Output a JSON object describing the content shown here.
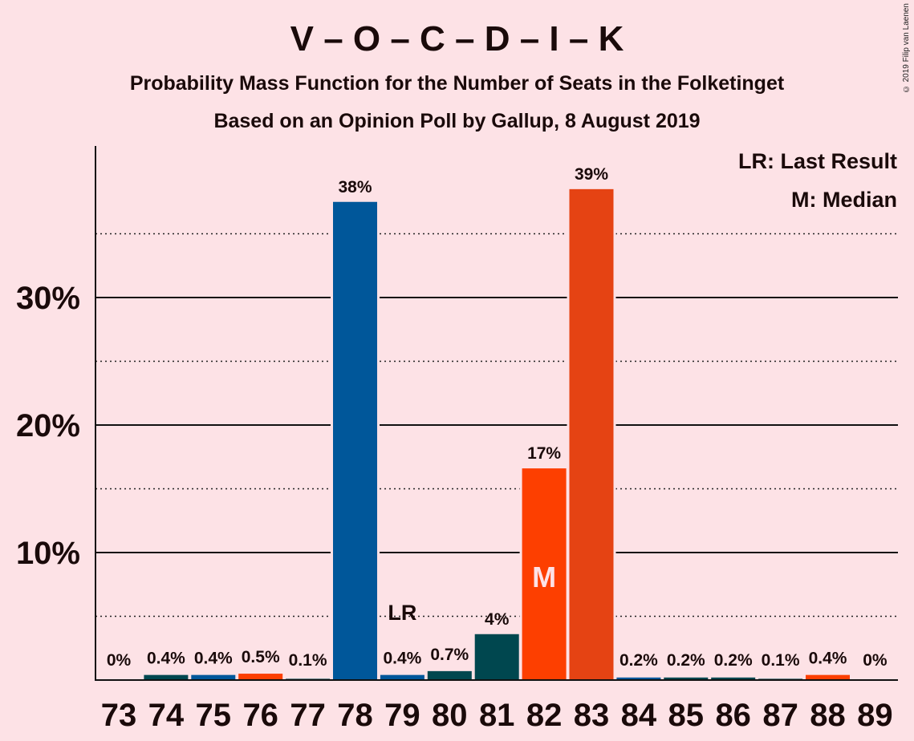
{
  "title": "V – O – C – D – I – K",
  "subtitle1": "Probability Mass Function for the Number of Seats in the Folketinget",
  "subtitle2": "Based on an Opinion Poll by Gallup, 8 August 2019",
  "copyright": "© 2019 Filip van Laenen",
  "legend": {
    "lr": "LR: Last Result",
    "median": "M: Median"
  },
  "markers": {
    "lr_label": "LR",
    "median_label": "M",
    "lr_seat": 79,
    "median_seat": 82
  },
  "colors": {
    "background": "#fde2e6",
    "blue": "#00579a",
    "dark_teal": "#00474f",
    "orange_red": "#fd3f00",
    "orange": "#e54313"
  },
  "chart_data": {
    "type": "bar",
    "categories": [
      "73",
      "74",
      "75",
      "76",
      "77",
      "78",
      "79",
      "80",
      "81",
      "82",
      "83",
      "84",
      "85",
      "86",
      "87",
      "88",
      "89"
    ],
    "values": [
      0,
      0.4,
      0.4,
      0.5,
      0.1,
      37.5,
      0.4,
      0.7,
      3.6,
      16.6,
      38.5,
      0.2,
      0.2,
      0.2,
      0.1,
      0.4,
      0
    ],
    "labels": [
      "0%",
      "0.4%",
      "0.4%",
      "0.5%",
      "0.1%",
      "38%",
      "0.4%",
      "0.7%",
      "4%",
      "17%",
      "39%",
      "0.2%",
      "0.2%",
      "0.2%",
      "0.1%",
      "0.4%",
      "0%"
    ],
    "bar_colors": [
      "#00474f",
      "#00474f",
      "#00579a",
      "#fd3f00",
      "#00474f",
      "#00579a",
      "#00579a",
      "#00474f",
      "#00474f",
      "#fd3f00",
      "#e54313",
      "#00579a",
      "#00474f",
      "#00474f",
      "#00474f",
      "#fd3f00",
      "#00474f"
    ],
    "ylabel": "",
    "y_ticks": [
      "10%",
      "20%",
      "30%"
    ],
    "y_tick_values": [
      10,
      20,
      30
    ],
    "y_minor_ticks": [
      5,
      15,
      25,
      35
    ],
    "ylim": [
      0,
      42
    ],
    "grid": true
  }
}
